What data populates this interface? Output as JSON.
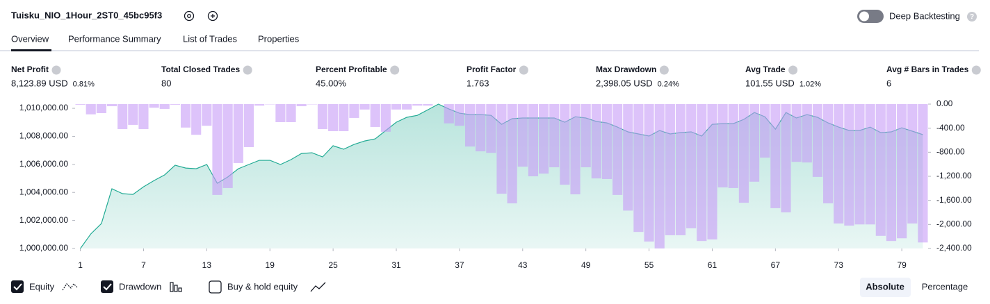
{
  "header": {
    "title": "Tuisku_NIO_1Hour_2ST0_45bc95f3",
    "toggle_label": "Deep Backtesting"
  },
  "tabs": [
    "Overview",
    "Performance Summary",
    "List of Trades",
    "Properties"
  ],
  "metrics": [
    {
      "label": "Net Profit",
      "value": "8,123.89 USD",
      "percent": "0.81%",
      "color": "#089981"
    },
    {
      "label": "Total Closed Trades",
      "value": "80",
      "color": "#131722"
    },
    {
      "label": "Percent Profitable",
      "value": "45.00%",
      "color": "#089981"
    },
    {
      "label": "Profit Factor",
      "value": "1.763",
      "color": "#089981"
    },
    {
      "label": "Max Drawdown",
      "value": "2,398.05 USD",
      "percent": "0.24%",
      "color": "#f23645"
    },
    {
      "label": "Avg Trade",
      "value": "101.55 USD",
      "percent": "1.02%",
      "color": "#089981"
    },
    {
      "label": "Avg # Bars in Trades",
      "value": "6",
      "color": "#131722"
    }
  ],
  "chart_data": {
    "type": "combo",
    "x": [
      1,
      2,
      3,
      4,
      5,
      6,
      7,
      8,
      9,
      10,
      11,
      12,
      13,
      14,
      15,
      16,
      17,
      18,
      19,
      20,
      21,
      22,
      23,
      24,
      25,
      26,
      27,
      28,
      29,
      30,
      31,
      32,
      33,
      34,
      35,
      36,
      37,
      38,
      39,
      40,
      41,
      42,
      43,
      44,
      45,
      46,
      47,
      48,
      49,
      50,
      51,
      52,
      53,
      54,
      55,
      56,
      57,
      58,
      59,
      60,
      61,
      62,
      63,
      64,
      65,
      66,
      67,
      68,
      69,
      70,
      71,
      72,
      73,
      74,
      75,
      76,
      77,
      78,
      79,
      80,
      81
    ],
    "series": [
      {
        "name": "Equity",
        "color": "#22ab94",
        "values": [
          1000000,
          1001040,
          1001780,
          1004260,
          1003910,
          1003860,
          1004400,
          1004850,
          1005250,
          1005940,
          1005740,
          1005690,
          1005990,
          1004650,
          1005100,
          1005690,
          1005990,
          1006290,
          1006290,
          1005990,
          1006340,
          1006780,
          1006830,
          1006530,
          1007330,
          1007080,
          1007430,
          1007670,
          1007820,
          1008420,
          1009010,
          1009360,
          1009500,
          1009900,
          1010300,
          1009950,
          1009650,
          1009550,
          1009550,
          1009500,
          1008860,
          1009260,
          1009310,
          1009310,
          1009310,
          1009310,
          1009010,
          1009400,
          1009310,
          1009060,
          1008960,
          1008660,
          1008320,
          1008170,
          1008020,
          1008420,
          1008170,
          1008270,
          1008320,
          1008020,
          1008860,
          1008910,
          1008910,
          1009210,
          1009700,
          1009400,
          1008510,
          1009700,
          1009310,
          1009550,
          1009360,
          1008960,
          1008660,
          1008420,
          1008420,
          1008660,
          1008270,
          1008320,
          1008610,
          1008370,
          1008120
        ]
      },
      {
        "name": "Drawdown",
        "color": "#c79bf7",
        "axis": "y2",
        "values": [
          -10,
          -170,
          -150,
          -35,
          -415,
          -345,
          -415,
          -60,
          -80,
          -10,
          -390,
          -510,
          -360,
          -1510,
          -1395,
          -980,
          -715,
          -25,
          -5,
          -300,
          -300,
          -35,
          -5,
          -415,
          -450,
          -450,
          -230,
          -90,
          -380,
          -460,
          -90,
          -90,
          -25,
          -25,
          0,
          -320,
          -360,
          -705,
          -785,
          -810,
          -1490,
          -1650,
          -1040,
          -1200,
          -1155,
          -1050,
          -1340,
          -1500,
          -1050,
          -1235,
          -1245,
          -1510,
          -1770,
          -2125,
          -2285,
          -2400,
          -2180,
          -2180,
          -2065,
          -2275,
          -2250,
          -1385,
          -1395,
          -1640,
          -1290,
          -890,
          -1730,
          -1800,
          -960,
          -970,
          -1210,
          -1650,
          -1985,
          -2020,
          -2000,
          -2000,
          -2190,
          -2275,
          -2230,
          -1985,
          -2300
        ]
      }
    ],
    "xlim": [
      0.5,
      81.5
    ],
    "xticks": [
      1,
      7,
      13,
      19,
      25,
      31,
      37,
      43,
      49,
      55,
      61,
      67,
      73,
      79
    ],
    "ylim": [
      1000000,
      1010300
    ],
    "yticks": [
      {
        "value": 1000000,
        "label": "1,000,000.00"
      },
      {
        "value": 1002000,
        "label": "1,002,000.00"
      },
      {
        "value": 1004000,
        "label": "1,004,000.00"
      },
      {
        "value": 1006000,
        "label": "1,006,000.00"
      },
      {
        "value": 1008000,
        "label": "1,008,000.00"
      },
      {
        "value": 1010000,
        "label": "1,010,000.00"
      }
    ],
    "y2lim": [
      -2400,
      0
    ],
    "y2ticks": [
      {
        "value": 0,
        "label": "0.00"
      },
      {
        "value": -400,
        "label": "-400.00"
      },
      {
        "value": -800,
        "label": "-800.00"
      },
      {
        "value": -1200,
        "label": "-1,200.00"
      },
      {
        "value": -1600,
        "label": "-1,600.00"
      },
      {
        "value": -2000,
        "label": "-2,000.00"
      },
      {
        "value": -2400,
        "label": "-2,400.00"
      }
    ]
  },
  "footer": {
    "unchecked_option": "Buy & hold equity",
    "buttons": [
      "Absolute",
      "Percentage"
    ]
  }
}
